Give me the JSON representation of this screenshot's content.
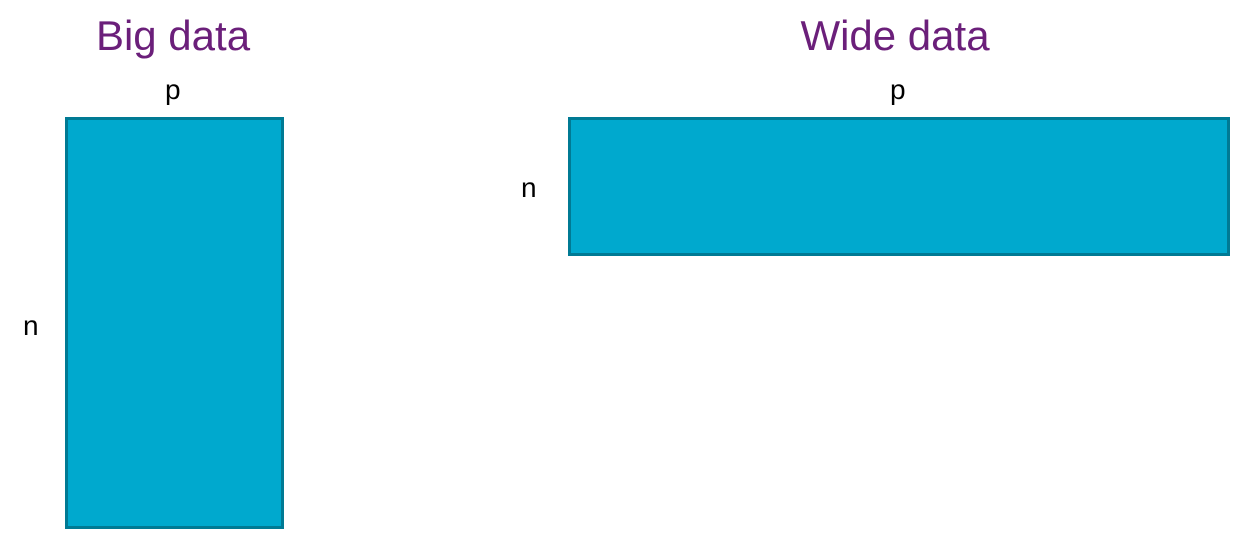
{
  "colors": {
    "title": "#6b1f7a",
    "matrix_fill": "#00a9ce",
    "matrix_border": "#007a94",
    "text": "#000000"
  },
  "big_data": {
    "title": "Big data",
    "column_label": "p",
    "row_label": "n"
  },
  "wide_data": {
    "title": "Wide data",
    "column_label": "p",
    "row_label": "n"
  }
}
